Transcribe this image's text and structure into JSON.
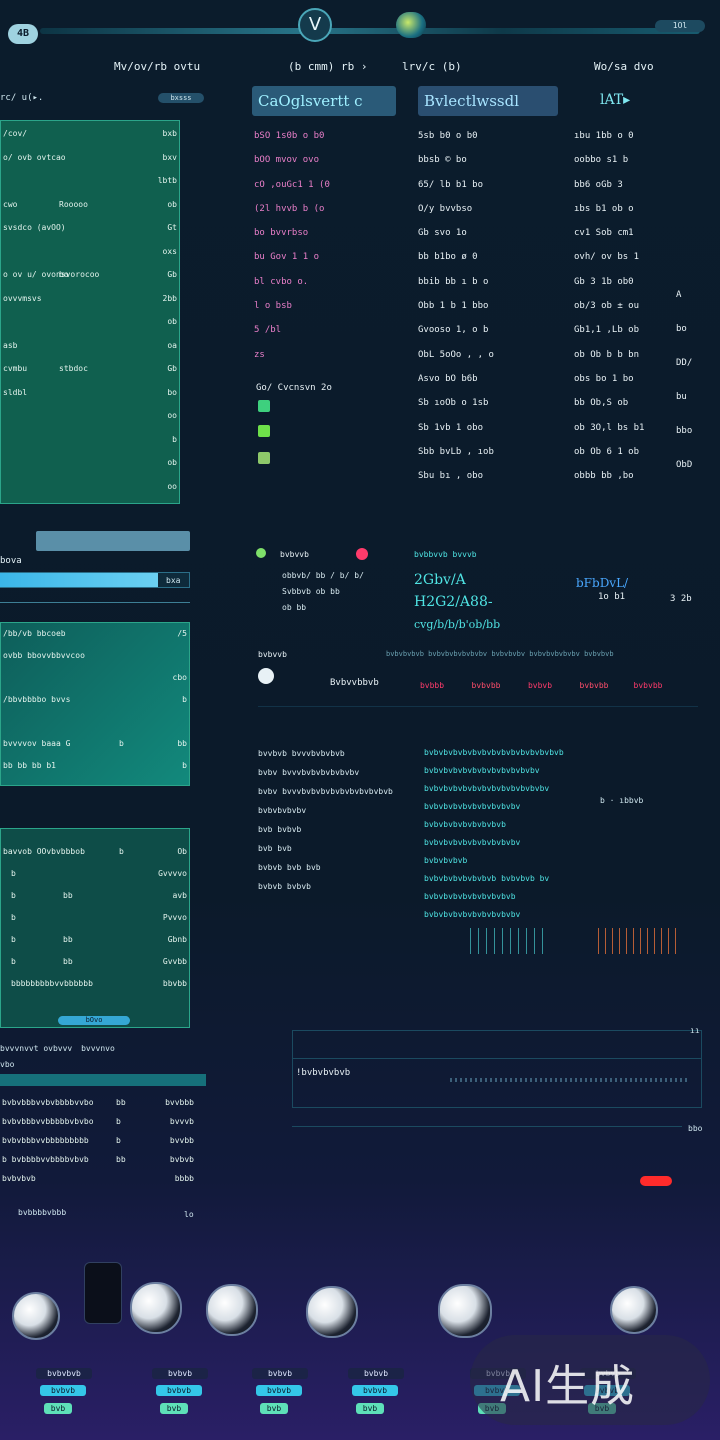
{
  "topbar": {
    "logo_left": "4B",
    "logo_center": "V",
    "button_right": "1Ol"
  },
  "headers": {
    "left": "Mv/ov/rb ovtu",
    "middle": "(b cmm) rb ›",
    "middle2": "lrv/c (b)",
    "right": "Wo/sa dvo"
  },
  "title_boxes": [
    "CaOglsvertt c",
    "Bvlectlwssdl"
  ],
  "title_right": "lAT▸",
  "left_panel_top": {
    "header_left": "rc/ u(▸.",
    "header_right": "bxsss",
    "rows": [
      [
        "/cov/",
        "",
        "bxb"
      ],
      [
        "o/ ovb ovtcao",
        "",
        "bxv"
      ],
      [
        "",
        "",
        "lbtb"
      ],
      [
        "cwo",
        "Rooooo",
        "ob"
      ],
      [
        "svsdco (avOO)",
        "",
        "Gt"
      ],
      [
        "",
        "",
        "oxs"
      ],
      [
        "o ov u/ ovonsvorocoo",
        "bo",
        "Gb"
      ],
      [
        "ovvvmsvs",
        "",
        "2bb"
      ],
      [
        "",
        "",
        "ob"
      ],
      [
        "asb",
        "",
        "oa"
      ],
      [
        "cvmbu",
        "stbdoc",
        "Gb"
      ],
      [
        "sldbl",
        "",
        "bo"
      ],
      [
        "",
        "",
        "oo"
      ],
      [
        "",
        "",
        "b"
      ],
      [
        "",
        "",
        "ob"
      ],
      [
        "",
        "",
        "oo"
      ]
    ]
  },
  "col_left": {
    "items": [
      "bSO  1s0b  o b0",
      "bOO  mvov  ovo",
      "cO  ,ouGc1  1 (0",
      "(2l  hvvb  b (o",
      "bo  bvvrbso",
      "bu  Gov  1 1 o",
      "bl  cvbo  o.",
      "l o  bsb",
      "5  /bl",
      "zs"
    ],
    "sub_header": "Go/ Cvcnsvn 2o"
  },
  "col_mid": {
    "items": [
      "5sb b0 o  b0",
      "bbsb © bo",
      "65/  lb b1 bo",
      "O/y bvvbso",
      "Gb  svo 1o",
      "bb  b1bo  ø  0",
      "bbib  bb  ı  b  o",
      "Obb  1 b  1 bbo",
      "Gvooso  1, o b",
      "ObL 5oOo  ,  ,  o",
      "Asvo bO b6b",
      "Sb  ıoOb  o 1sb",
      "Sb  1vb 1 obo",
      "Sbb  bvLb  ,  ıob",
      "Sbu  bı  ,  obo"
    ]
  },
  "col_right": {
    "items": [
      "ıbu 1bb  o  0",
      "oobbo s1  b",
      "bb6 oGb  3",
      "ıbs b1  ob  o",
      "cv1 Sob  cm1",
      "ovh/ ov bs 1",
      "Gb 3 1b  ob0",
      "ob/3 ob  ±  ou",
      "Gb1,1 ,Lb  ob",
      "ob Ob b b  bn",
      "obs bo 1 bo",
      "bb Ob,S  ob",
      "ob 3O,l  bs  b1",
      "ob Ob 6  1  ob",
      "obbb  bb  ,bo"
    ],
    "far_right": [
      "A",
      "bo",
      "DD/",
      "bu",
      "bbo",
      "ObD"
    ]
  },
  "left_bar_section": {
    "label": "bova",
    "bar_label": "bxa"
  },
  "left_panel_mid": {
    "rows": [
      [
        "/bb/vb bbcoeb",
        "",
        "/5"
      ],
      [
        "ovbb bbovvbbvvcoo",
        "",
        ""
      ],
      [
        "",
        "",
        "cbo"
      ],
      [
        "/bbvbbbbo  bvvs",
        "",
        "b"
      ],
      [
        "",
        "",
        ""
      ],
      [
        "bvvvvov baaa  G",
        "b",
        "bb"
      ],
      [
        "bb bb  bb  b1",
        "",
        "b"
      ]
    ]
  },
  "left_panel_low": {
    "header": [
      "bavvob  OOvbvbbbob",
      "b",
      "Ob"
    ],
    "rows": [
      [
        "b",
        "",
        "Gvvvvo"
      ],
      [
        "b",
        "bb",
        "avb"
      ],
      [
        "b",
        "",
        "Pvvvo"
      ],
      [
        "b",
        "bb",
        "Gbnb"
      ],
      [
        "b",
        "bb",
        "Gvvbb"
      ],
      [
        "bbbbbbbbbvvbbbbbb",
        "",
        "bbvbb"
      ]
    ],
    "button": "bOvo"
  },
  "left_bottom": {
    "header": [
      "bvvvnvvt ovbvvv",
      "bvvvnvo",
      "bvvnvvvs bvvbvvbo..."
    ],
    "sub": "vbo",
    "rows": [
      [
        "bvbvbbbvvbvbbbbvvbo",
        "bb",
        "bvvbbb"
      ],
      [
        "bvbvbbbvvbbbbbvbvbo",
        "b",
        "bvvvb"
      ],
      [
        "bvbvbbbvvbbbbbbbbb",
        "b",
        "bvvbb"
      ],
      [
        "b bvbbbbvvbbbbvbvb",
        "bb",
        "bvbvb"
      ],
      [
        "bvbvbvb",
        "",
        "bbbb"
      ]
    ],
    "footer": "bvbbbbvbbb",
    "footer_right": "lo"
  },
  "stats": {
    "items": [
      {
        "icon": "sparkle",
        "label": "bvbvvb",
        "color": "#e8f1f5"
      },
      {
        "icon": "leaf",
        "label": "bvbbvvb bvvvb",
        "color": "#4fe3e3"
      }
    ],
    "big1": "2Gbv/A",
    "big2": "H2G2/A88-",
    "big3": "cvg/b/b/b'ob/bb",
    "right_label": "bFbDvL/",
    "right_sub": "1o b1",
    "right_num": "3 2b",
    "small_list": [
      "obbvb/ bb / b/ b/",
      "Svbbvb ob bb",
      "ob  bb"
    ]
  },
  "category_row": {
    "lead": "bvbvvb",
    "label": "Bvbvvbbvb",
    "tags": [
      "bvbbb",
      "bvbvbb",
      "bvbvb",
      "bvbvbb",
      "bvbvbb"
    ],
    "right_caps": "bvbvbvbvb  bvbvbvbvbvbvbv  bvbvbvbv  bvbvbvbvbvbv  bvbvbvb"
  },
  "log_list": {
    "left": [
      "bvvbvb  bvvvbvbvbvb",
      "bvbv  bvvvbvbvbvbvbvbv",
      "bvbv  bvvvbvbvbvbvbvbvbvbvbvb",
      "bvbvbvbvbv",
      "bvb bvbvb",
      "bvb  bvb",
      "bvbvb bvb bvb",
      "bvbvb bvbvb"
    ],
    "right": [
      "bvbvbvbvbvbvbvbvbvbvbvbvbvbvb",
      "bvbvbvbvbvbvbvbvbvbvbvbv",
      "bvbvbvbvbvbvbvbvbvbvbvbvbv",
      "bvbvbvbvbvbvbvbvbvbv",
      "bvbvbvbvbvbvbvbvb",
      "bvbvbvbvbvbvbvbvbvbv",
      "bvbvbvbvb",
      "bvbvbvbvbvbvbvb  bvbvbvb  bv",
      "bvbvbvbvbvbvbvbvbvb",
      "bvbvbvbvbvbvbvbvbvbv"
    ],
    "side": "b · ıbbvb"
  },
  "bottom_panel": {
    "label": "!bvbvbvbvb",
    "right1": "ıı",
    "right2": "bbo"
  },
  "avatars": [
    "player-1",
    "player-2",
    "player-3",
    "player-4",
    "player-5",
    "player-6"
  ],
  "bottom_tags": [
    [
      "bvbvbvb",
      "bvbvb",
      "bvb"
    ],
    [
      "bvbvb",
      "bvbvb",
      "bvb"
    ],
    [
      "bvbvb",
      "bvbvb",
      "bvb"
    ],
    [
      "bvbvb",
      "bvbvb",
      "bvb"
    ],
    [
      "bvbvb",
      "bvbvb",
      "bvb"
    ],
    [
      "bvbvb",
      "bvbvb",
      "bvb"
    ]
  ],
  "watermark": "AI生成"
}
